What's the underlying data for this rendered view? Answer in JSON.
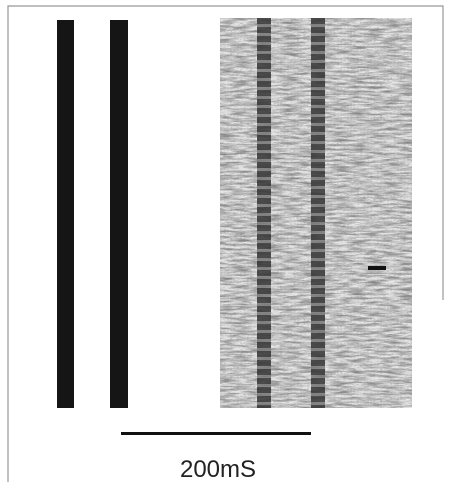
{
  "scale_bar": {
    "label": "200mS"
  }
}
